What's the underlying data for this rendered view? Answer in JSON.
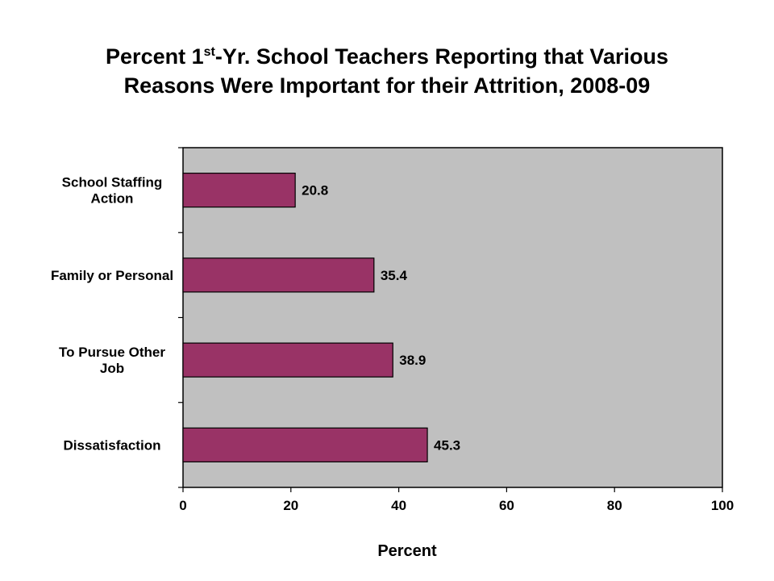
{
  "chart_data": {
    "type": "bar",
    "orientation": "horizontal",
    "title_parts": {
      "line1_before": "Percent 1",
      "line1_sup": "st",
      "line1_after": "-Yr. School Teachers Reporting that Various",
      "line2": "Reasons Were Important for their Attrition, 2008-09"
    },
    "categories": [
      [
        "School Staffing",
        "Action"
      ],
      [
        "Family or Personal"
      ],
      [
        "To Pursue Other",
        "Job"
      ],
      [
        "Dissatisfaction"
      ]
    ],
    "values": [
      20.8,
      35.4,
      38.9,
      45.3
    ],
    "value_labels": [
      "20.8",
      "35.4",
      "38.9",
      "45.3"
    ],
    "xlabel": "Percent",
    "xlim": [
      0,
      100
    ],
    "xticks": [
      0,
      20,
      40,
      60,
      80,
      100
    ],
    "grid": false,
    "colors": {
      "bar": "#993366",
      "plot_background": "#c0c0c0",
      "text": "#000000"
    }
  }
}
